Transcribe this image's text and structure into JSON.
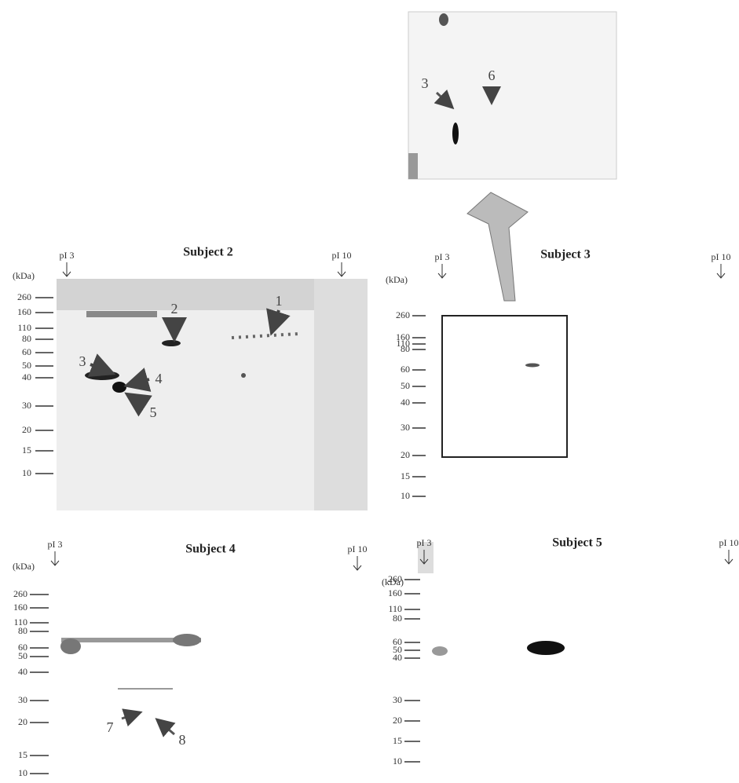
{
  "inset": {
    "labels": [
      "3",
      "6"
    ]
  },
  "panels": [
    {
      "title": "Subject 2",
      "pi_left": "pI 3",
      "pi_right": "pI 10",
      "unit": "(kDa)",
      "markers": [
        "260",
        "160",
        "110",
        "80",
        "60",
        "50",
        "40",
        "30",
        "20",
        "15",
        "10"
      ],
      "spots": [
        "1",
        "2",
        "3",
        "4",
        "5"
      ]
    },
    {
      "title": "Subject 3",
      "pi_left": "pI 3",
      "pi_right": "pI 10",
      "unit": "(kDa)",
      "markers": [
        "260",
        "160",
        "110",
        "80",
        "60",
        "50",
        "40",
        "30",
        "20",
        "15",
        "10"
      ]
    },
    {
      "title": "Subject 4",
      "pi_left": "pI 3",
      "pi_right": "pI 10",
      "unit": "(kDa)",
      "markers": [
        "260",
        "160",
        "110",
        "80",
        "60",
        "50",
        "40",
        "30",
        "20",
        "15",
        "10"
      ],
      "spots": [
        "7",
        "8"
      ]
    },
    {
      "title": "Subject 5",
      "pi_left": "pI 3",
      "pi_right": "pI 10",
      "unit": "(kDa)",
      "markers": [
        "260",
        "160",
        "110",
        "80",
        "60",
        "50",
        "40",
        "30",
        "20",
        "15",
        "10"
      ]
    }
  ]
}
